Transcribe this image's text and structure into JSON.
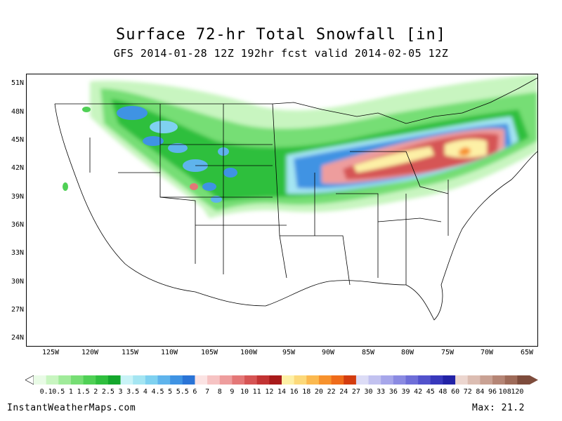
{
  "title": "Surface 72-hr Total Snowfall [in]",
  "subtitle": "GFS 2014-01-28 12Z 192hr fcst valid 2014-02-05 12Z",
  "lat_labels": [
    "51N",
    "48N",
    "45N",
    "42N",
    "39N",
    "36N",
    "33N",
    "30N",
    "27N",
    "24N"
  ],
  "lon_labels": [
    "125W",
    "120W",
    "115W",
    "110W",
    "105W",
    "100W",
    "95W",
    "90W",
    "85W",
    "80W",
    "75W",
    "70W",
    "65W"
  ],
  "colorbar": {
    "labels": [
      "0.1",
      "0.5",
      "1",
      "1.5",
      "2",
      "2.5",
      "3",
      "3.5",
      "4",
      "4.5",
      "5",
      "5.5",
      "6",
      "7",
      "8",
      "9",
      "10",
      "11",
      "12",
      "14",
      "16",
      "18",
      "20",
      "22",
      "24",
      "27",
      "30",
      "33",
      "36",
      "39",
      "42",
      "45",
      "48",
      "60",
      "72",
      "84",
      "96",
      "108",
      "120"
    ],
    "colors": [
      "#e9fbe6",
      "#c8f5c0",
      "#a0eb9a",
      "#76de74",
      "#4fd055",
      "#2fbf3e",
      "#14a72c",
      "#c9f3f7",
      "#a4e5f2",
      "#7fd1f0",
      "#5fb4ec",
      "#3f93e3",
      "#2a74d6",
      "#fbe3e3",
      "#f6c3c3",
      "#ee9d9d",
      "#e47777",
      "#d65454",
      "#c23333",
      "#a81a1a",
      "#fdf0a6",
      "#fcd97a",
      "#fbb94f",
      "#f7922d",
      "#ef6b1a",
      "#d33c0f",
      "#dcdcf6",
      "#c2c2f0",
      "#a6a6ea",
      "#8a8ae2",
      "#6e6ed8",
      "#5252cc",
      "#3838bc",
      "#2222a6",
      "#ecd6cf",
      "#dcbdb2",
      "#c9a193",
      "#b58575",
      "#9e6a58",
      "#7e4c3c"
    ]
  },
  "footer": {
    "site": "InstantWeatherMaps.com",
    "max_label": "Max:",
    "max_value": "21.2"
  }
}
